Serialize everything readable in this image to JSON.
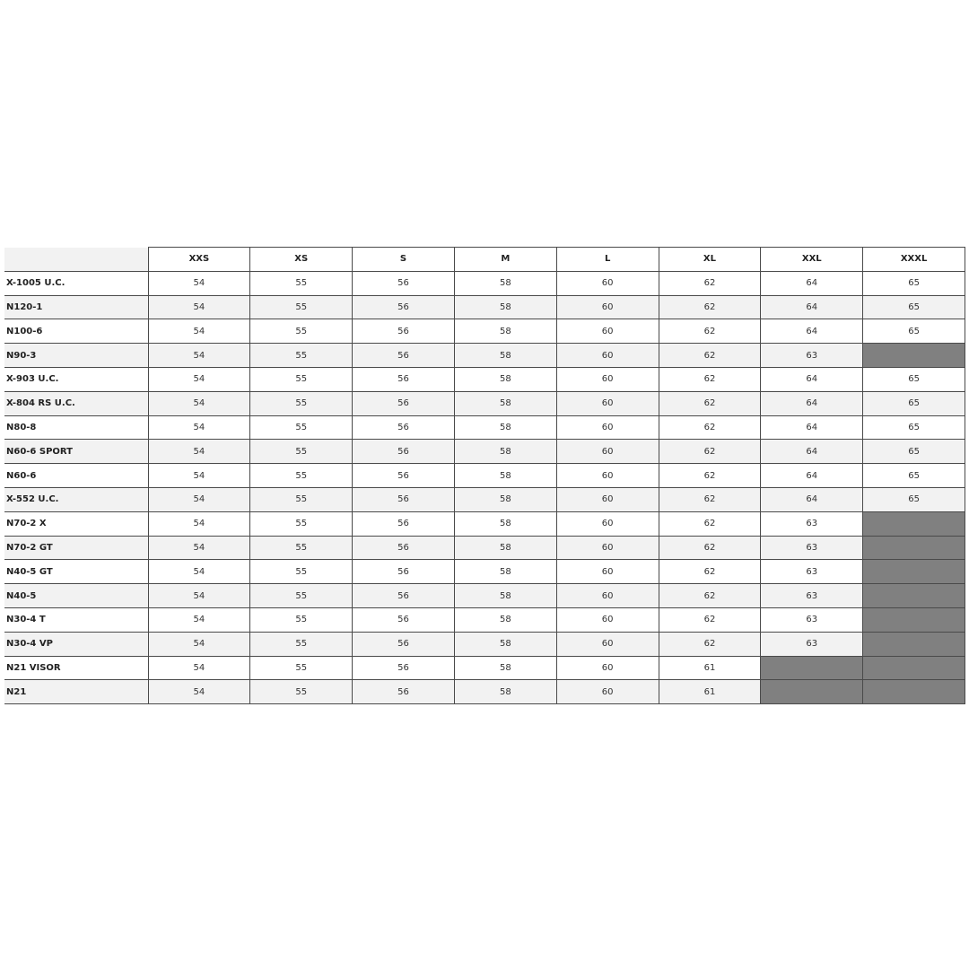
{
  "sizes": [
    "XXS",
    "XS",
    "S",
    "M",
    "L",
    "XL",
    "XXL",
    "XXXL"
  ],
  "na_color": "#808080",
  "alt_row_color": "#f2f2f2",
  "rows": [
    {
      "model": "X-1005 U.C.",
      "values": [
        "54",
        "55",
        "56",
        "58",
        "60",
        "62",
        "64",
        "65"
      ]
    },
    {
      "model": "N120-1",
      "values": [
        "54",
        "55",
        "56",
        "58",
        "60",
        "62",
        "64",
        "65"
      ]
    },
    {
      "model": "N100-6",
      "values": [
        "54",
        "55",
        "56",
        "58",
        "60",
        "62",
        "64",
        "65"
      ]
    },
    {
      "model": "N90-3",
      "values": [
        "54",
        "55",
        "56",
        "58",
        "60",
        "62",
        "63",
        null
      ]
    },
    {
      "model": "X-903 U.C.",
      "values": [
        "54",
        "55",
        "56",
        "58",
        "60",
        "62",
        "64",
        "65"
      ]
    },
    {
      "model": "X-804 RS U.C.",
      "values": [
        "54",
        "55",
        "56",
        "58",
        "60",
        "62",
        "64",
        "65"
      ]
    },
    {
      "model": "N80-8",
      "values": [
        "54",
        "55",
        "56",
        "58",
        "60",
        "62",
        "64",
        "65"
      ]
    },
    {
      "model": "N60-6 SPORT",
      "values": [
        "54",
        "55",
        "56",
        "58",
        "60",
        "62",
        "64",
        "65"
      ]
    },
    {
      "model": "N60-6",
      "values": [
        "54",
        "55",
        "56",
        "58",
        "60",
        "62",
        "64",
        "65"
      ]
    },
    {
      "model": "X-552 U.C.",
      "values": [
        "54",
        "55",
        "56",
        "58",
        "60",
        "62",
        "64",
        "65"
      ]
    },
    {
      "model": "N70-2 X",
      "values": [
        "54",
        "55",
        "56",
        "58",
        "60",
        "62",
        "63",
        null
      ]
    },
    {
      "model": "N70-2 GT",
      "values": [
        "54",
        "55",
        "56",
        "58",
        "60",
        "62",
        "63",
        null
      ]
    },
    {
      "model": "N40-5 GT",
      "values": [
        "54",
        "55",
        "56",
        "58",
        "60",
        "62",
        "63",
        null
      ]
    },
    {
      "model": "N40-5",
      "values": [
        "54",
        "55",
        "56",
        "58",
        "60",
        "62",
        "63",
        null
      ]
    },
    {
      "model": "N30-4 T",
      "values": [
        "54",
        "55",
        "56",
        "58",
        "60",
        "62",
        "63",
        null
      ]
    },
    {
      "model": "N30-4 VP",
      "values": [
        "54",
        "55",
        "56",
        "58",
        "60",
        "62",
        "63",
        null
      ]
    },
    {
      "model": "N21 VISOR",
      "values": [
        "54",
        "55",
        "56",
        "58",
        "60",
        "61",
        null,
        null
      ]
    },
    {
      "model": "N21",
      "values": [
        "54",
        "55",
        "56",
        "58",
        "60",
        "61",
        null,
        null
      ]
    }
  ]
}
